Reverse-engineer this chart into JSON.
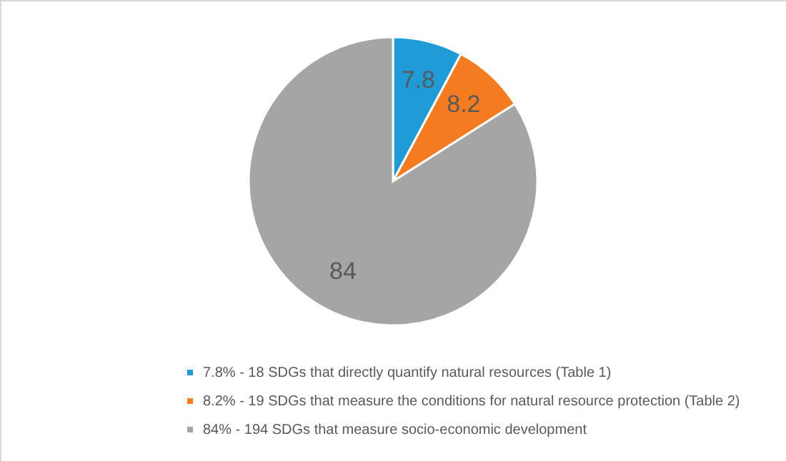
{
  "chart_data": {
    "type": "pie",
    "categories": [
      "7.8%  - 18 SDGs that directly quantify natural resources (Table 1)",
      "8.2% - 19 SDGs that measure the conditions for natural resource protection (Table 2)",
      "84% - 194 SDGs that measure socio-economic development"
    ],
    "values": [
      7.8,
      8.2,
      84
    ],
    "colors": [
      "#1f9bd7",
      "#f47b20",
      "#a5a5a5"
    ],
    "data_labels": true,
    "legend": "bottom"
  }
}
